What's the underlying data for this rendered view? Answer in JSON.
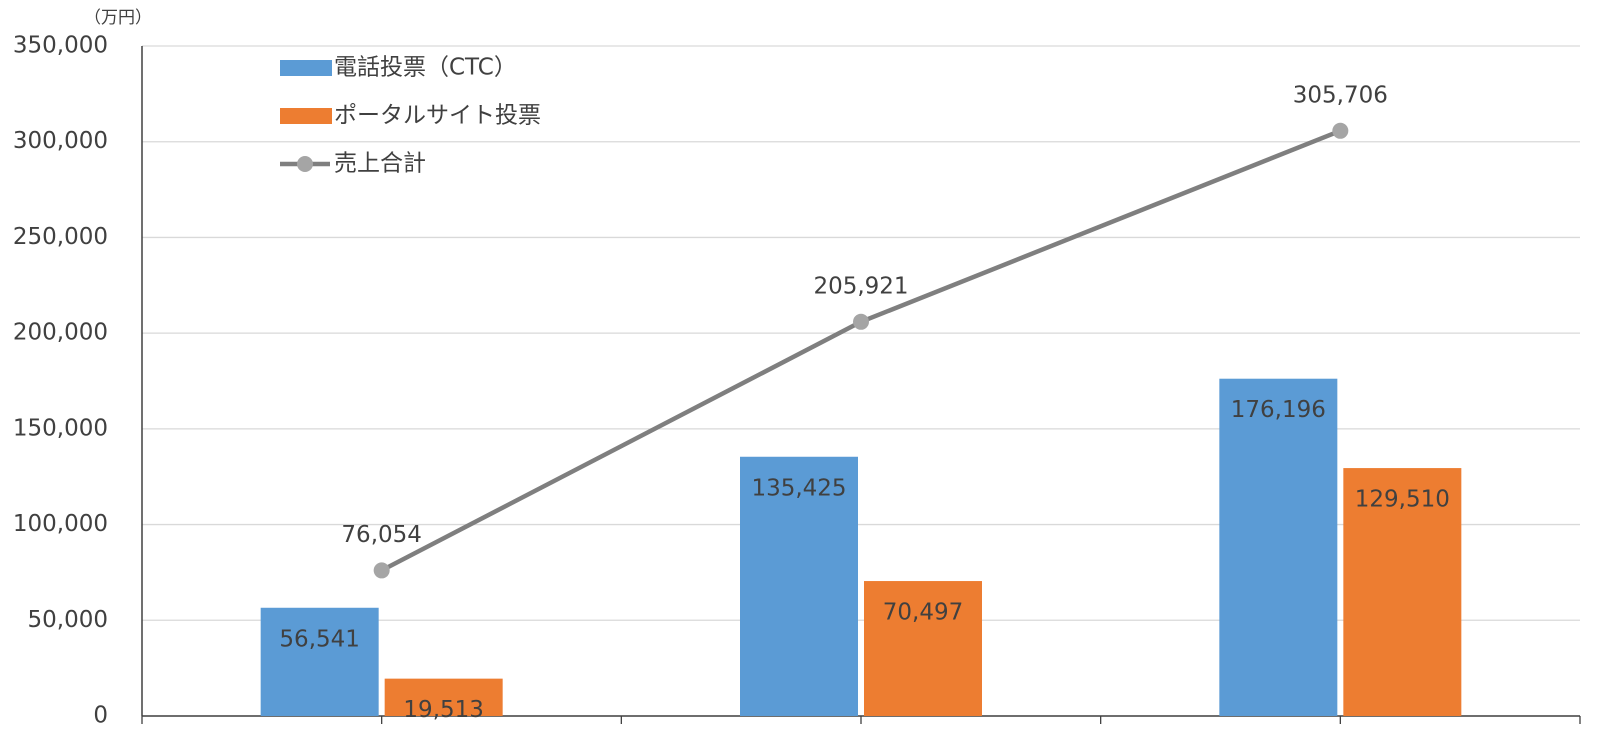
{
  "chart_data": {
    "type": "bar_line",
    "y_label": "（万円）",
    "categories": [
      null,
      null,
      null
    ],
    "series": [
      {
        "name": "電話投票（CTC）",
        "type": "bar",
        "color": "#5b9bd5",
        "values": [
          56541,
          135425,
          176196
        ],
        "value_labels": [
          "56,541",
          "135,425",
          "176,196"
        ]
      },
      {
        "name": "ポータルサイト投票",
        "type": "bar",
        "color": "#ed7d31",
        "values": [
          19513,
          70497,
          129510
        ],
        "value_labels": [
          "19,513",
          "70,497",
          "129,510"
        ]
      },
      {
        "name": "売上合計",
        "type": "line",
        "color": "#7f7f7f",
        "marker_color": "#a5a5a5",
        "values": [
          76054,
          205921,
          305706
        ],
        "value_labels": [
          "76,054",
          "205,921",
          "305,706"
        ]
      }
    ],
    "ylim": [
      0,
      350000
    ],
    "yticks": [
      0,
      {
        "value": 50000,
        "label": "50,000"
      },
      {
        "value": 100000,
        "label": "100,000"
      },
      {
        "value": 150000,
        "label": "150,000"
      },
      {
        "value": 200000,
        "label": "200,000"
      },
      {
        "value": 250000,
        "label": "250,000"
      },
      {
        "value": 300000,
        "label": "300,000"
      },
      {
        "value": 350000,
        "label": "350,000"
      }
    ],
    "grid": true,
    "legend": "top-left"
  }
}
